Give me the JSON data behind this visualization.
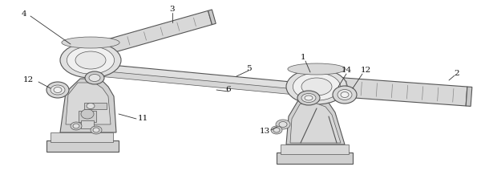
{
  "bg_color": "#ffffff",
  "lc": "#555555",
  "dk": "#333333",
  "mg": "#888888",
  "lg": "#bbbbbb",
  "figsize": [
    6.0,
    2.23
  ],
  "dpi": 100,
  "aspect": "auto"
}
